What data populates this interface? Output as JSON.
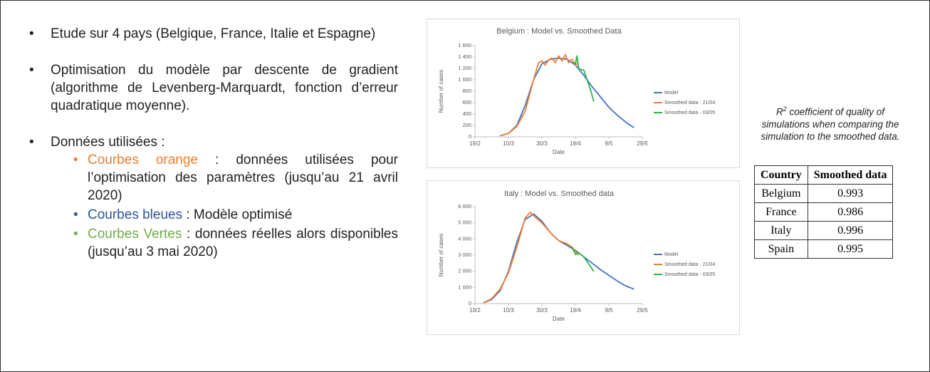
{
  "bullets": [
    {
      "text": "Etude sur 4 pays (Belgique, France, Italie et Espagne)"
    },
    {
      "text": "Optimisation du modèle par descente de gradient (algorithme de Levenberg-Marquardt, fonction d’erreur quadratique moyenne)."
    },
    {
      "text": "Données utilisées :",
      "sub": [
        {
          "term": "Courbes orange",
          "text": " : données utilisées pour l’optimisation des paramètres (jusqu’au 21 avril 2020)",
          "color": "#ed7d31"
        },
        {
          "term": "Courbes bleues",
          "text": " : Modèle optimisé",
          "color": "#2f5597"
        },
        {
          "term": "Courbes Vertes",
          "text": " : données réelles alors disponibles (jusqu’au 3 mai 2020)",
          "color": "#70ad47"
        }
      ]
    }
  ],
  "chart_data": [
    {
      "type": "line",
      "title": "Belgium : Model vs. Smoothed Data",
      "x_label": "Date",
      "y_label": "Number of cases",
      "xlim": [
        "19/2",
        "29/5"
      ],
      "xticks": [
        "19/2",
        "10/3",
        "30/3",
        "19/4",
        "9/5",
        "29/5"
      ],
      "ylim": [
        0,
        1600
      ],
      "yticks": [
        0,
        200,
        400,
        600,
        800,
        {
          "value": 1000,
          "label": "1 000"
        },
        {
          "value": 1200,
          "label": "1 200"
        },
        {
          "value": 1400,
          "label": "1 400"
        },
        {
          "value": 1600,
          "label": "1 600"
        }
      ],
      "legend": "right",
      "series": [
        {
          "name": "Model",
          "color": "#4472c4",
          "x": [
            "5/3",
            "10/3",
            "15/3",
            "20/3",
            "25/3",
            "30/3",
            "4/4",
            "9/4",
            "14/4",
            "19/4",
            "24/4",
            "29/4",
            "4/5",
            "9/5",
            "14/5",
            "19/5",
            "24/5"
          ],
          "values": [
            20,
            60,
            200,
            550,
            1000,
            1280,
            1360,
            1380,
            1360,
            1260,
            1080,
            880,
            700,
            520,
            380,
            260,
            160
          ]
        },
        {
          "name": "Smoothed data - 21/04",
          "color": "#ed7d31",
          "x": [
            "5/3",
            "10/3",
            "15/3",
            "20/3",
            "25/3",
            "28/3",
            "30/3",
            "1/4",
            "3/4",
            "5/4",
            "7/4",
            "9/4",
            "11/4",
            "13/4",
            "15/4",
            "17/4",
            "19/4",
            "21/4"
          ],
          "values": [
            20,
            60,
            180,
            450,
            1000,
            1300,
            1330,
            1260,
            1350,
            1380,
            1300,
            1420,
            1330,
            1440,
            1300,
            1360,
            1260,
            1300
          ]
        },
        {
          "name": "Smoothed data - 03/05",
          "color": "#2bb34a",
          "x": [
            "17/4",
            "19/4",
            "20/4",
            "21/4",
            "22/4",
            "24/4",
            "26/4",
            "28/4",
            "30/4"
          ],
          "values": [
            1300,
            1280,
            1420,
            1200,
            1180,
            1170,
            1000,
            830,
            620
          ]
        }
      ]
    },
    {
      "type": "line",
      "title": "Italy : Model vs. Smoothed data",
      "x_label": "Date",
      "y_label": "Number of cases",
      "xlim": [
        "19/2",
        "29/5"
      ],
      "xticks": [
        "19/2",
        "10/3",
        "30/3",
        "19/4",
        "9/5",
        "29/5"
      ],
      "ylim": [
        0,
        6000
      ],
      "yticks": [
        0,
        {
          "value": 1000,
          "label": "1 000"
        },
        {
          "value": 2000,
          "label": "2 000"
        },
        {
          "value": 3000,
          "label": "3 000"
        },
        {
          "value": 4000,
          "label": "4 000"
        },
        {
          "value": 5000,
          "label": "5 000"
        },
        {
          "value": 6000,
          "label": "6 000"
        }
      ],
      "legend": "right",
      "series": [
        {
          "name": "Model",
          "color": "#4472c4",
          "x": [
            "24/2",
            "29/2",
            "5/3",
            "10/3",
            "15/3",
            "20/3",
            "25/3",
            "30/3",
            "4/4",
            "9/4",
            "14/4",
            "19/4",
            "24/4",
            "29/4",
            "4/5",
            "9/5",
            "14/5",
            "19/5",
            "24/5"
          ],
          "values": [
            50,
            250,
            800,
            2000,
            3800,
            5200,
            5550,
            5100,
            4400,
            3900,
            3600,
            3300,
            2900,
            2500,
            2100,
            1750,
            1400,
            1100,
            900
          ]
        },
        {
          "name": "Smoothed data - 21/04",
          "color": "#ed7d31",
          "x": [
            "24/2",
            "29/2",
            "5/3",
            "10/3",
            "15/3",
            "20/3",
            "23/3",
            "25/3",
            "30/3",
            "4/4",
            "9/4",
            "14/4",
            "17/4",
            "21/4"
          ],
          "values": [
            50,
            300,
            900,
            1900,
            3500,
            5300,
            5650,
            5450,
            5000,
            4400,
            3900,
            3700,
            3500,
            3000
          ]
        },
        {
          "name": "Smoothed data - 03/05",
          "color": "#2bb34a",
          "x": [
            "17/4",
            "19/4",
            "21/4",
            "24/4",
            "27/4",
            "30/4"
          ],
          "values": [
            3500,
            3050,
            3150,
            2900,
            2450,
            2000
          ]
        }
      ]
    }
  ],
  "table": {
    "caption": {
      "symbol": "R",
      "superscript": "2",
      "text": " coefficient of quality of simulations when comparing the simulation to the smoothed data."
    },
    "header": [
      "Country",
      "Smoothed data"
    ],
    "rows": [
      [
        "Belgium",
        "0.993"
      ],
      [
        "France",
        "0.986"
      ],
      [
        "Italy",
        "0.996"
      ],
      [
        "Spain",
        "0.995"
      ]
    ]
  }
}
